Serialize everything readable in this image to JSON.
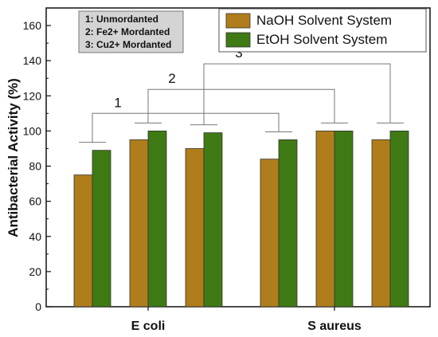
{
  "chart_data": {
    "type": "bar",
    "categories": [
      "E coli",
      "S aureus"
    ],
    "ylabel": "Antibacterial Activity (%)",
    "xlabel": "",
    "ylim": [
      0,
      170
    ],
    "yticks": [
      0,
      20,
      40,
      60,
      80,
      100,
      120,
      140,
      160
    ],
    "grid": false,
    "legend_position": "top-right",
    "treatment_note": [
      "1: Unmordanted",
      "2: Fe2+ Mordanted",
      "3: Cu2+ Mordanted"
    ],
    "group_labels": [
      "1",
      "2",
      "3"
    ],
    "series": [
      {
        "name": "NaOH Solvent System",
        "color": "#b07d1c",
        "values": [
          [
            75,
            95,
            90
          ],
          [
            84,
            100,
            95
          ]
        ]
      },
      {
        "name": "EtOH Solvent System",
        "color": "#3f7a14",
        "values": [
          [
            89,
            100,
            99
          ],
          [
            95,
            100,
            100
          ]
        ]
      }
    ]
  }
}
